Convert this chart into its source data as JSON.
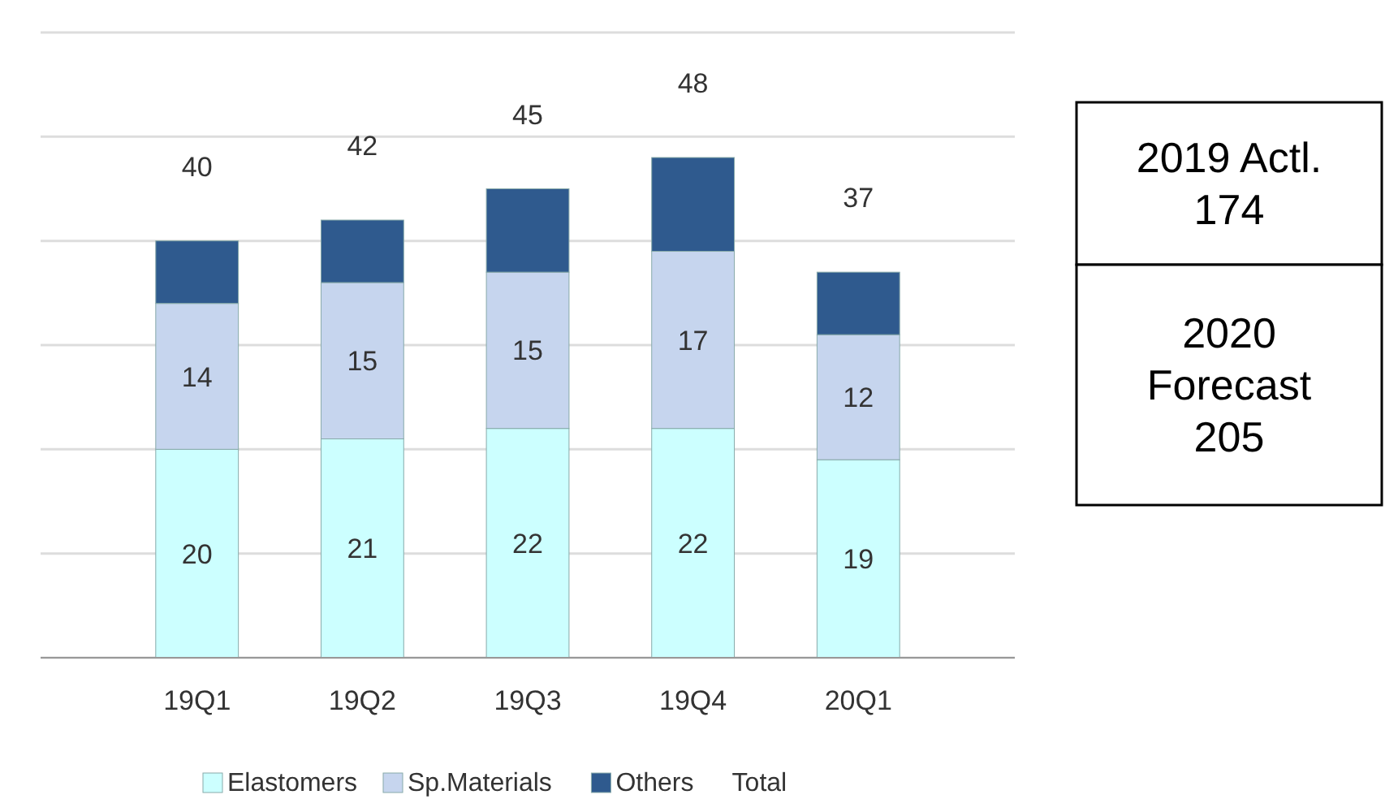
{
  "chart_data": {
    "type": "bar",
    "stacked": true,
    "categories": [
      "19Q1",
      "19Q2",
      "19Q3",
      "19Q4",
      "20Q1"
    ],
    "series": [
      {
        "name": "Elastomers",
        "color": "#ccffff",
        "values": [
          20,
          21,
          22,
          22,
          19
        ],
        "value_labels": [
          "20",
          "21",
          "22",
          "22",
          "19"
        ]
      },
      {
        "name": "Sp.Materials",
        "color": "#c6d5ee",
        "values": [
          14,
          15,
          15,
          17,
          12
        ],
        "value_labels": [
          "14",
          "15",
          "15",
          "17",
          "12"
        ]
      },
      {
        "name": "Others",
        "color": "#2f5a8e",
        "values": [
          6,
          6,
          8,
          9,
          6
        ],
        "value_labels": [
          null,
          null,
          null,
          null,
          null
        ]
      }
    ],
    "totals": [
      "40",
      "42",
      "45",
      "48",
      "37"
    ],
    "ylim": [
      0,
      60
    ],
    "yticks": [
      {
        "value": 0,
        "label": null
      },
      {
        "value": 10,
        "label": null
      },
      {
        "value": 20,
        "label": null
      },
      {
        "value": 30,
        "label": null
      },
      {
        "value": 40,
        "label": null
      },
      {
        "value": 50,
        "label": null
      },
      {
        "value": 60,
        "label": null
      }
    ],
    "grid": "y",
    "tick_labels": "x",
    "legend": "bottom",
    "annotations": [
      "Total",
      "2019 Actl.\n174",
      "2020\nForecast\n205"
    ]
  }
}
